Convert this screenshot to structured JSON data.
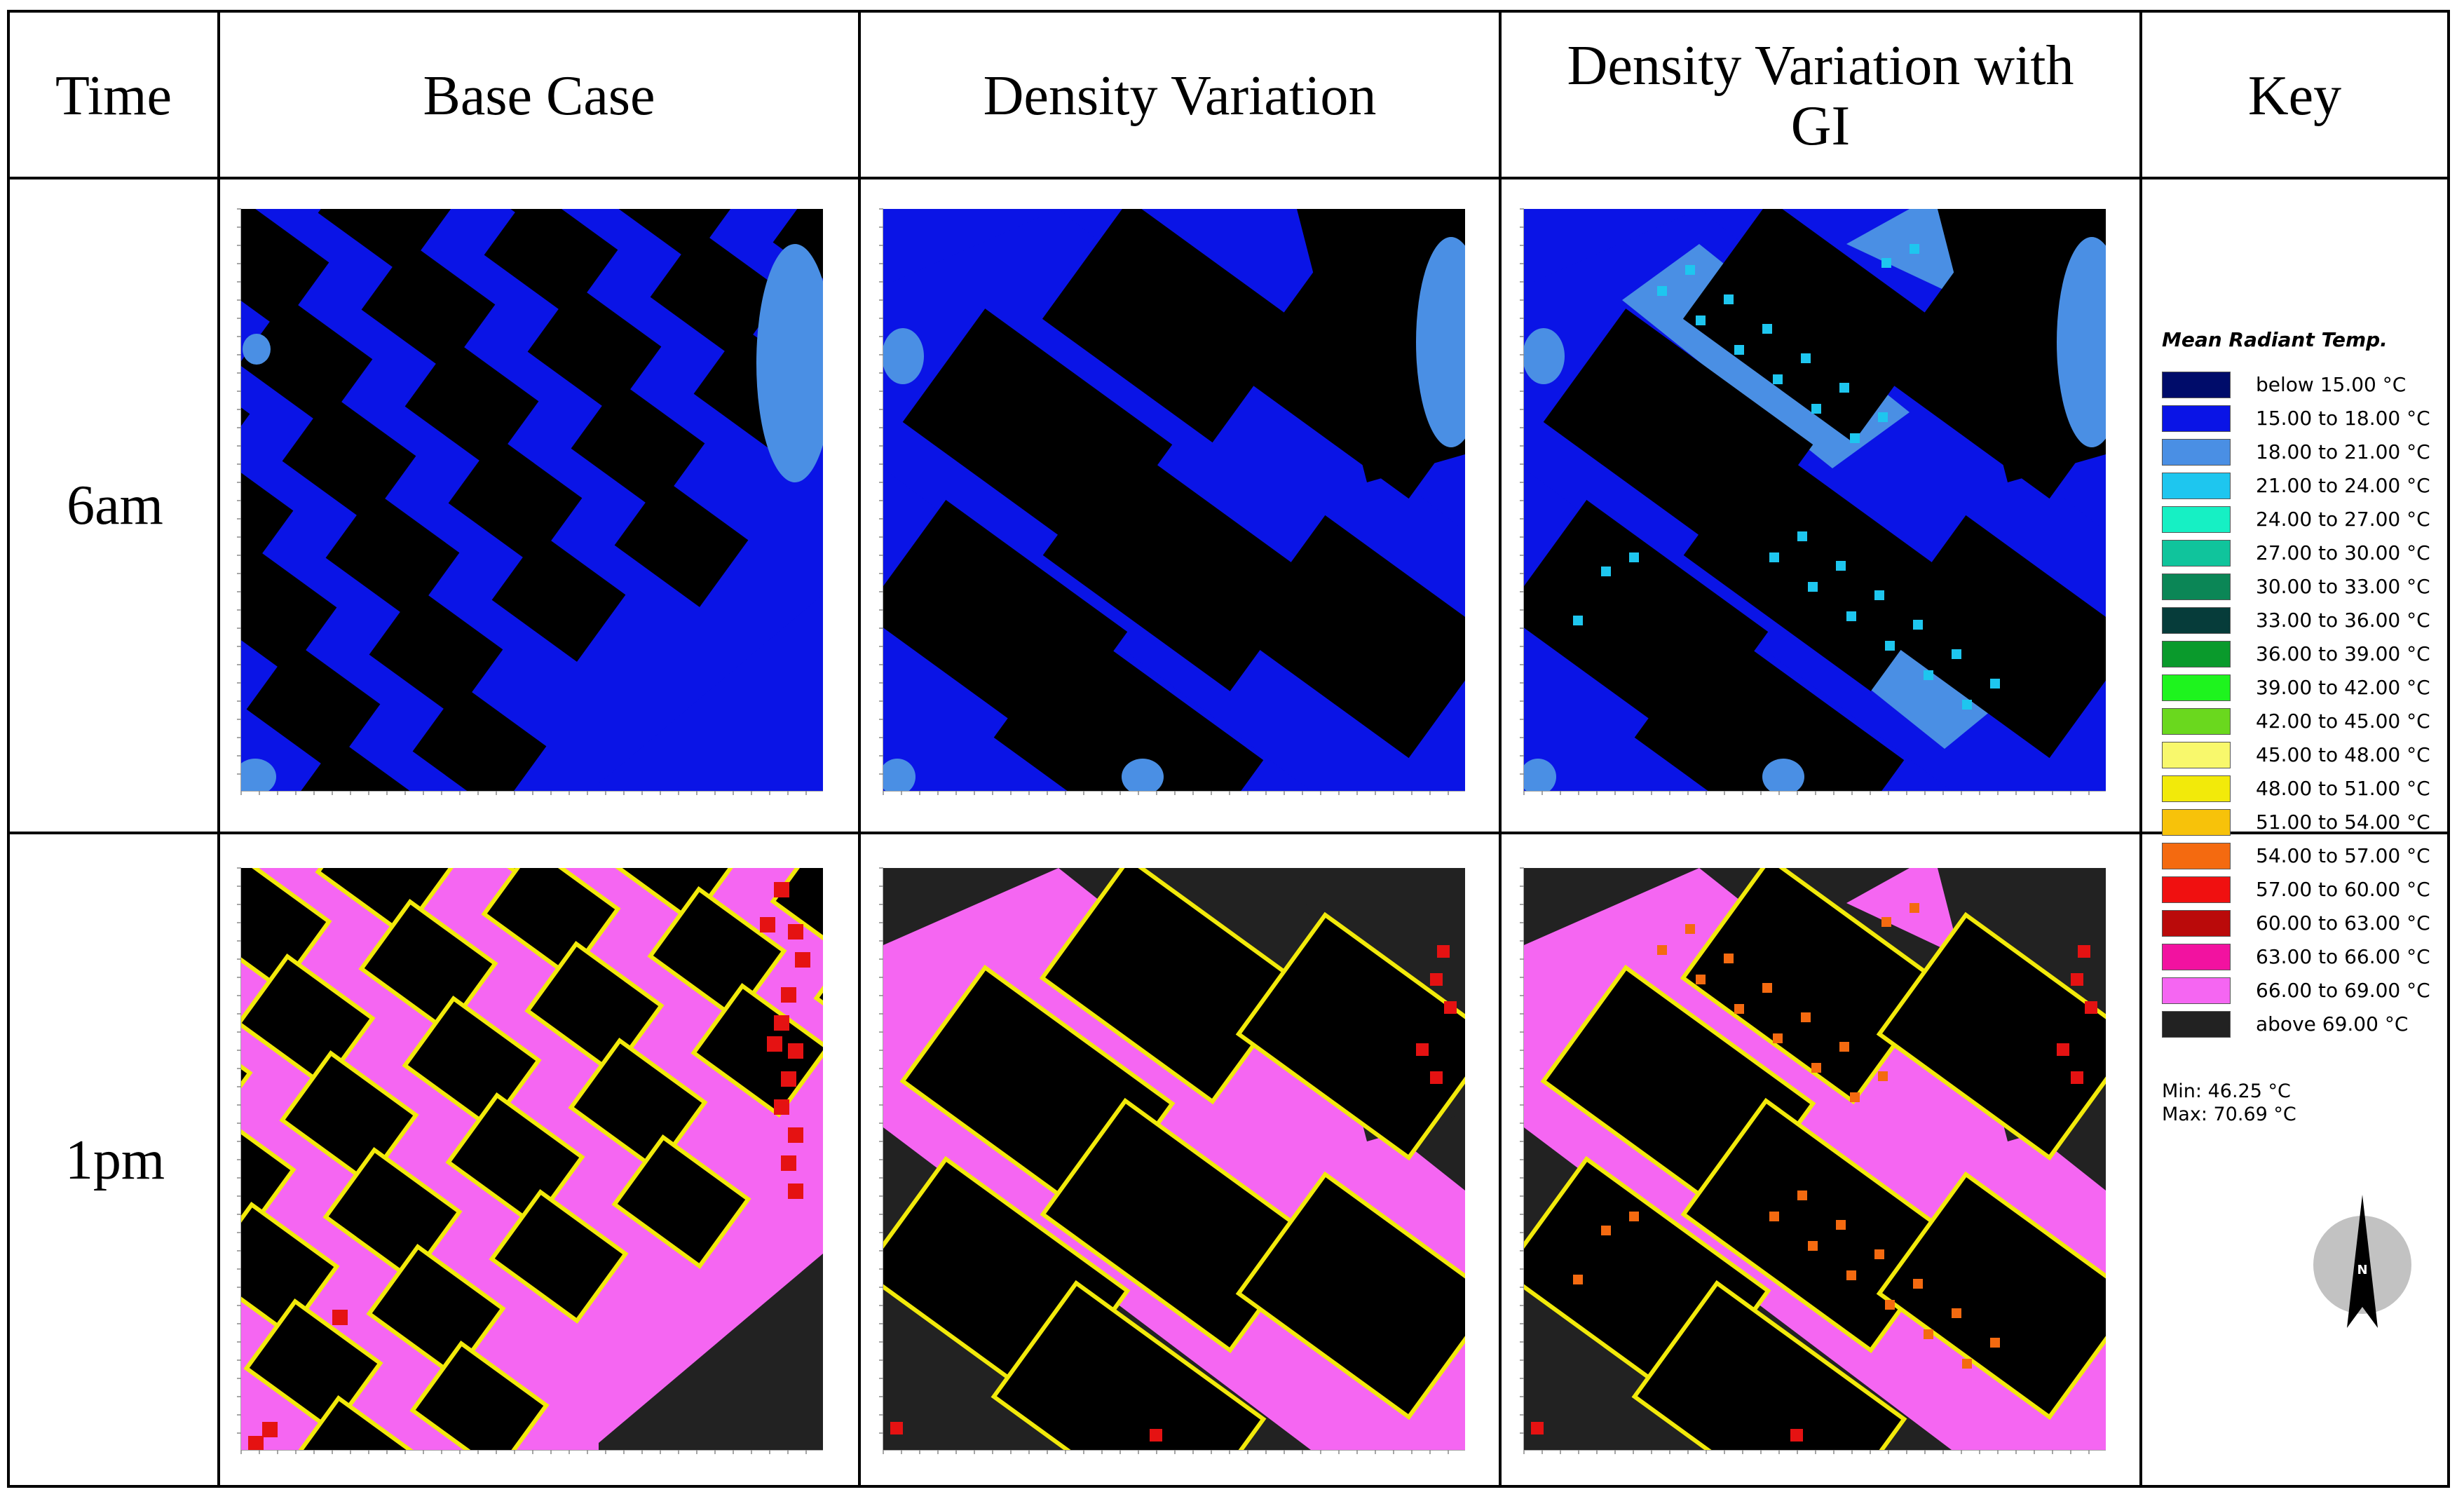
{
  "headers": {
    "time": "Time",
    "base_case": "Base Case",
    "density_variation": "Density Variation",
    "density_variation_gi_line1": "Density Variation with",
    "density_variation_gi_line2": "GI",
    "key": "Key"
  },
  "rows": [
    {
      "label": "6am"
    },
    {
      "label": "1pm"
    }
  ],
  "legend": {
    "title": "Mean Radiant Temp.",
    "items": [
      {
        "label": "below 15.00 °C",
        "color": "#000c6a"
      },
      {
        "label": "15.00 to 18.00 °C",
        "color": "#0a14e6"
      },
      {
        "label": "18.00 to 21.00 °C",
        "color": "#4a8fe4"
      },
      {
        "label": "21.00 to 24.00 °C",
        "color": "#1ec6ef"
      },
      {
        "label": "24.00 to 27.00 °C",
        "color": "#16f0c4"
      },
      {
        "label": "27.00 to 30.00 °C",
        "color": "#10c49c"
      },
      {
        "label": "30.00 to 33.00 °C",
        "color": "#0b8656"
      },
      {
        "label": "33.00 to 36.00 °C",
        "color": "#063c3a"
      },
      {
        "label": "36.00 to 39.00 °C",
        "color": "#0a9a2c"
      },
      {
        "label": "39.00 to 42.00 °C",
        "color": "#1ef41e"
      },
      {
        "label": "42.00 to 45.00 °C",
        "color": "#6ad81e"
      },
      {
        "label": "45.00 to 48.00 °C",
        "color": "#f8f86c"
      },
      {
        "label": "48.00 to 51.00 °C",
        "color": "#f2ea0a"
      },
      {
        "label": "51.00 to 54.00 °C",
        "color": "#f7c20a"
      },
      {
        "label": "54.00 to 57.00 °C",
        "color": "#f46a10"
      },
      {
        "label": "57.00 to 60.00 °C",
        "color": "#f01010"
      },
      {
        "label": "60.00 to 63.00 °C",
        "color": "#ba0a0a"
      },
      {
        "label": "63.00 to 66.00 °C",
        "color": "#f212a0"
      },
      {
        "label": "66.00 to 69.00 °C",
        "color": "#f566f2"
      },
      {
        "label": "above 69.00 °C",
        "color": "#222222"
      }
    ],
    "min": "Min: 46.25 °C",
    "max": "Max: 70.69 °C"
  },
  "compass": {
    "label": "N"
  },
  "colors": {
    "building": "#000000",
    "cool_ground_6am": "#0a14e6",
    "vegetation_6am": "#4a8fe4",
    "tree_6am": "#1ec6ef",
    "hot_ground_1pm": "#f566f2",
    "edge_1pm": "#f2ea0a",
    "tree_1pm": "#f46a10",
    "open_1pm": "#222222"
  }
}
